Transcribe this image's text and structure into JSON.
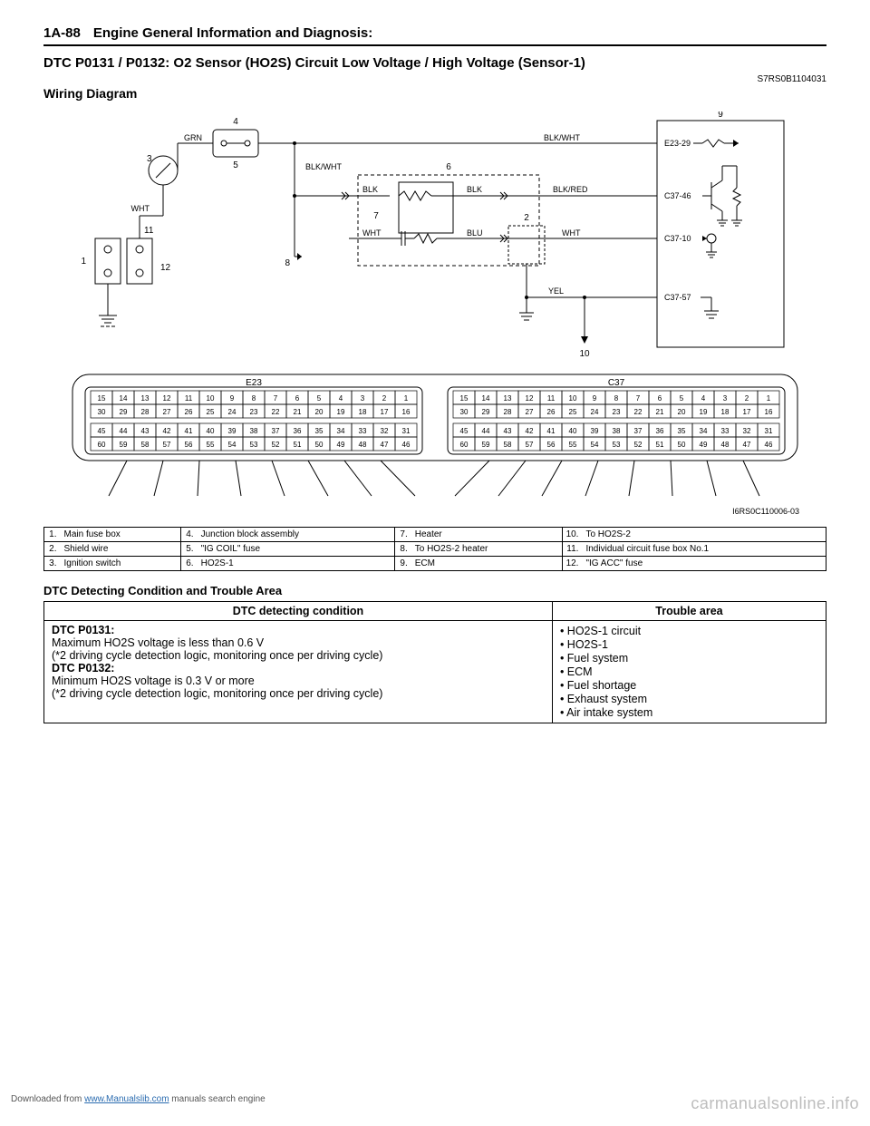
{
  "header": {
    "page_num": "1A-88",
    "section": "Engine General Information and Diagnosis:"
  },
  "title": "DTC P0131 / P0132: O2 Sensor (HO2S) Circuit Low Voltage / High Voltage (Sensor-1)",
  "doc_code": "S7RS0B1104031",
  "subhead": "Wiring Diagram",
  "diagram": {
    "wire_labels": {
      "grn": "GRN",
      "wht": "WHT",
      "blk_wht": "BLK/WHT",
      "blk": "BLK",
      "blu": "BLU",
      "yel": "YEL",
      "blk_red": "BLK/RED",
      "e23_29": "E23-29",
      "c37_46": "C37-46",
      "c37_10": "C37-10",
      "c37_57": "C37-57"
    },
    "callouts": {
      "n1": "1",
      "n2": "2",
      "n3": "3",
      "n4": "4",
      "n5": "5",
      "n6": "6",
      "n7": "7",
      "n8": "8",
      "n9": "9",
      "n10": "10",
      "n11": "11",
      "n12": "12"
    },
    "img_code": "I6RS0C110006-03"
  },
  "connectors": {
    "e23": {
      "label": "E23",
      "rows": [
        [
          "15",
          "14",
          "13",
          "12",
          "11",
          "10",
          "9",
          "8",
          "7",
          "6",
          "5",
          "4",
          "3",
          "2",
          "1"
        ],
        [
          "30",
          "29",
          "28",
          "27",
          "26",
          "25",
          "24",
          "23",
          "22",
          "21",
          "20",
          "19",
          "18",
          "17",
          "16"
        ],
        [
          "45",
          "44",
          "43",
          "42",
          "41",
          "40",
          "39",
          "38",
          "37",
          "36",
          "35",
          "34",
          "33",
          "32",
          "31"
        ],
        [
          "60",
          "59",
          "58",
          "57",
          "56",
          "55",
          "54",
          "53",
          "52",
          "51",
          "50",
          "49",
          "48",
          "47",
          "46"
        ]
      ]
    },
    "c37": {
      "label": "C37",
      "rows": [
        [
          "15",
          "14",
          "13",
          "12",
          "11",
          "10",
          "9",
          "8",
          "7",
          "6",
          "5",
          "4",
          "3",
          "2",
          "1"
        ],
        [
          "30",
          "29",
          "28",
          "27",
          "26",
          "25",
          "24",
          "23",
          "22",
          "21",
          "20",
          "19",
          "18",
          "17",
          "16"
        ],
        [
          "45",
          "44",
          "43",
          "42",
          "41",
          "40",
          "39",
          "38",
          "37",
          "36",
          "35",
          "34",
          "33",
          "32",
          "31"
        ],
        [
          "60",
          "59",
          "58",
          "57",
          "56",
          "55",
          "54",
          "53",
          "52",
          "51",
          "50",
          "49",
          "48",
          "47",
          "46"
        ]
      ]
    }
  },
  "legend": [
    {
      "n": "1.",
      "t": "Main fuse box"
    },
    {
      "n": "4.",
      "t": "Junction block assembly"
    },
    {
      "n": "7.",
      "t": "Heater"
    },
    {
      "n": "10.",
      "t": "To HO2S-2"
    },
    {
      "n": "2.",
      "t": "Shield wire"
    },
    {
      "n": "5.",
      "t": "\"IG COIL\" fuse"
    },
    {
      "n": "8.",
      "t": "To HO2S-2 heater"
    },
    {
      "n": "11.",
      "t": "Individual circuit fuse box No.1"
    },
    {
      "n": "3.",
      "t": "Ignition switch"
    },
    {
      "n": "6.",
      "t": "HO2S-1"
    },
    {
      "n": "9.",
      "t": "ECM"
    },
    {
      "n": "12.",
      "t": "\"IG ACC\" fuse"
    }
  ],
  "dtc_section_title": "DTC Detecting Condition and Trouble Area",
  "dtc_table": {
    "headers": {
      "cond": "DTC detecting condition",
      "area": "Trouble area"
    },
    "cond": {
      "l1": "DTC P0131:",
      "l2": "Maximum HO2S voltage is less than 0.6 V",
      "l3": "(*2 driving cycle detection logic, monitoring once per driving cycle)",
      "l4": "DTC P0132:",
      "l5": "Minimum HO2S voltage is 0.3 V or more",
      "l6": "(*2 driving cycle detection logic, monitoring once per driving cycle)"
    },
    "areas": [
      "HO2S-1 circuit",
      "HO2S-1",
      "Fuel system",
      "ECM",
      "Fuel shortage",
      "Exhaust system",
      "Air intake system"
    ]
  },
  "footer": {
    "left_pre": "Downloaded from ",
    "left_link": "www.Manualslib.com",
    "left_post": " manuals search engine",
    "right": "carmanualsonline.info"
  }
}
